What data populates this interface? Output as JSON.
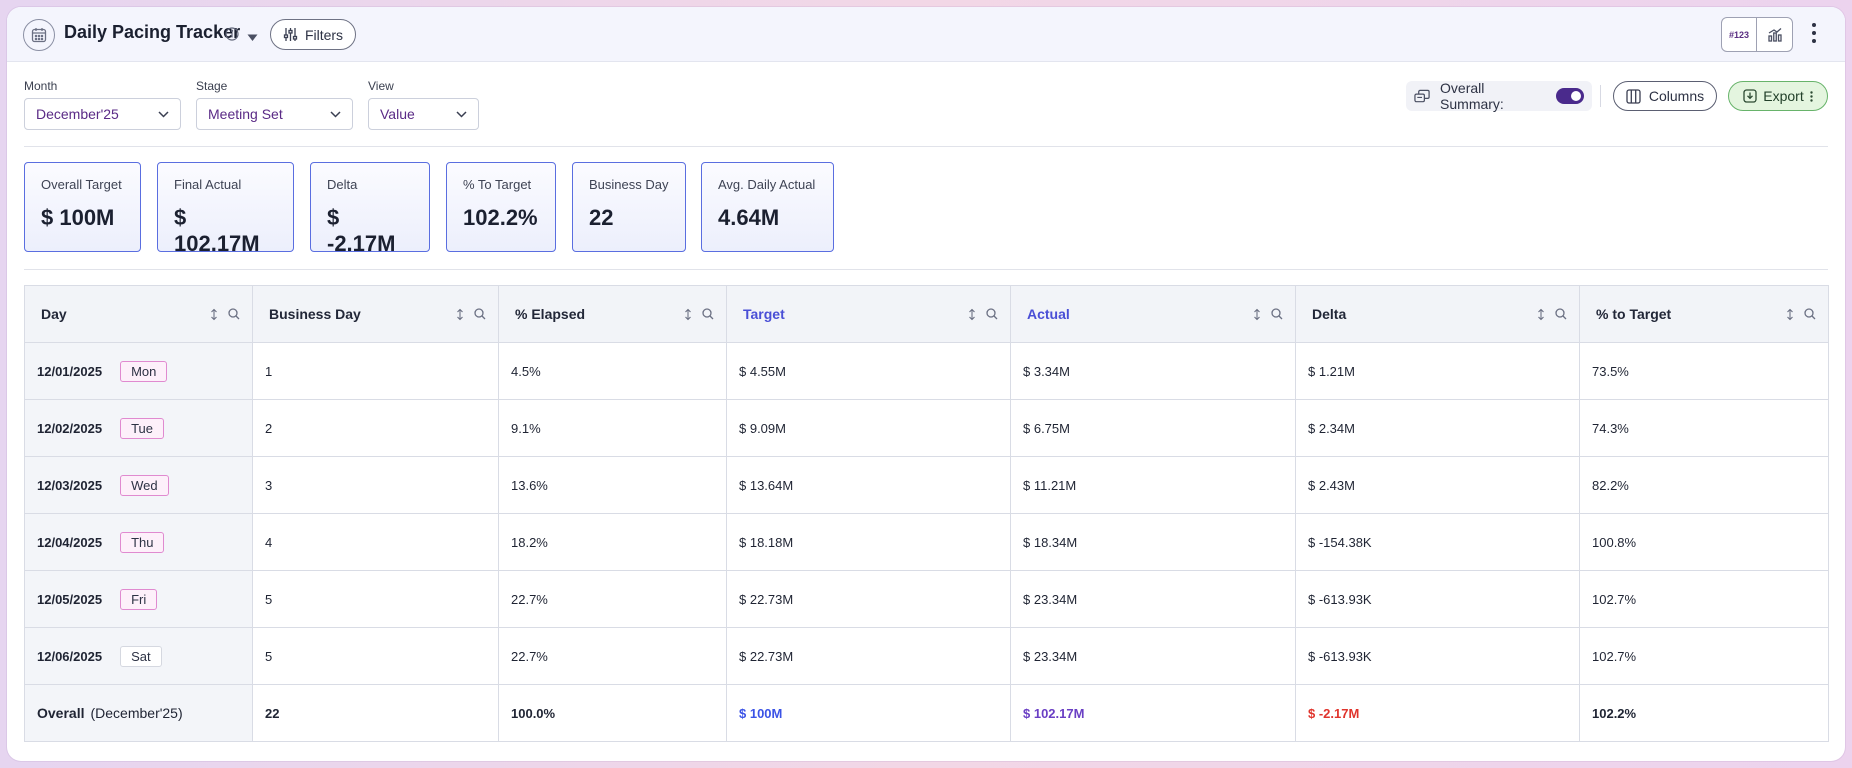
{
  "header": {
    "title": "Daily Pacing Tracker",
    "filters_label": "Filters",
    "toggle_value_label": "#123"
  },
  "filters": {
    "month": {
      "label": "Month",
      "value": "December'25"
    },
    "stage": {
      "label": "Stage",
      "value": "Meeting Set"
    },
    "view": {
      "label": "View",
      "value": "Value"
    }
  },
  "actions": {
    "summary_label": "Overall Summary:",
    "summary_on": true,
    "columns_label": "Columns",
    "export_label": "Export"
  },
  "cards": [
    {
      "label": "Overall Target",
      "value": "$ 100M"
    },
    {
      "label": "Final Actual",
      "value": "$ 102.17M"
    },
    {
      "label": "Delta",
      "value": "$ -2.17M"
    },
    {
      "label": "% To Target",
      "value": "102.2%"
    },
    {
      "label": "Business Day",
      "value": "22"
    },
    {
      "label": "Avg. Daily Actual",
      "value": "4.64M"
    }
  ],
  "table": {
    "columns": [
      "Day",
      "Business Day",
      "% Elapsed",
      "Target",
      "Actual",
      "Delta",
      "% to Target"
    ],
    "rows": [
      {
        "date": "12/01/2025",
        "dow": "Mon",
        "business_day": "1",
        "elapsed": "4.5%",
        "target": "$ 4.55M",
        "actual": "$ 3.34M",
        "delta": "$ 1.21M",
        "pct": "73.5%"
      },
      {
        "date": "12/02/2025",
        "dow": "Tue",
        "business_day": "2",
        "elapsed": "9.1%",
        "target": "$ 9.09M",
        "actual": "$ 6.75M",
        "delta": "$ 2.34M",
        "pct": "74.3%"
      },
      {
        "date": "12/03/2025",
        "dow": "Wed",
        "business_day": "3",
        "elapsed": "13.6%",
        "target": "$ 13.64M",
        "actual": "$ 11.21M",
        "delta": "$ 2.43M",
        "pct": "82.2%"
      },
      {
        "date": "12/04/2025",
        "dow": "Thu",
        "business_day": "4",
        "elapsed": "18.2%",
        "target": "$ 18.18M",
        "actual": "$ 18.34M",
        "delta": "$ -154.38K",
        "pct": "100.8%"
      },
      {
        "date": "12/05/2025",
        "dow": "Fri",
        "business_day": "5",
        "elapsed": "22.7%",
        "target": "$ 22.73M",
        "actual": "$ 23.34M",
        "delta": "$ -613.93K",
        "pct": "102.7%"
      },
      {
        "date": "12/06/2025",
        "dow": "Sat",
        "business_day": "5",
        "elapsed": "22.7%",
        "target": "$ 22.73M",
        "actual": "$ 23.34M",
        "delta": "$ -613.93K",
        "pct": "102.7%"
      }
    ],
    "overall": {
      "label": "Overall",
      "sub": "(December'25)",
      "business_day": "22",
      "elapsed": "100.0%",
      "target": "$ 100M",
      "actual": "$ 102.17M",
      "delta": "$ -2.17M",
      "pct": "102.2%"
    }
  },
  "colors": {
    "accent_purple": "#5a2a86",
    "target_blue": "#3b53e6",
    "actual_violet": "#6a3fc4",
    "negative_red": "#e0342c",
    "export_green": "#67b36a"
  }
}
